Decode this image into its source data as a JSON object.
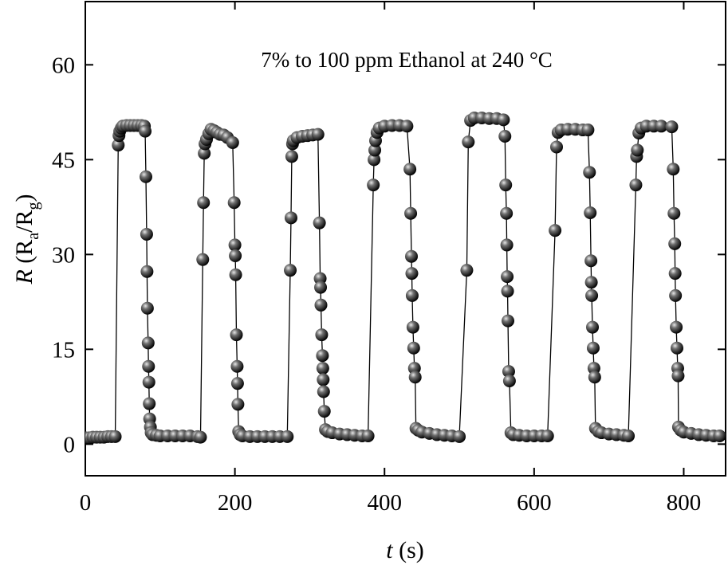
{
  "chart_data": {
    "type": "line",
    "title": "7% to 100 ppm Ethanol at 240 °C",
    "xlabel_parts": [
      "t",
      " (s)"
    ],
    "ylabel_parts": [
      "R",
      " (R",
      "a",
      "/R",
      "g",
      ")"
    ],
    "color": "#000000",
    "markers": true,
    "xlim": [
      0,
      856
    ],
    "xticks": [
      0,
      200,
      400,
      600,
      800
    ],
    "ylim": [
      -5,
      70
    ],
    "yticks": [
      0,
      15,
      30,
      45,
      60
    ],
    "x": [
      0,
      5,
      10,
      15,
      20,
      25,
      30,
      35,
      40,
      44,
      45,
      46,
      48,
      50,
      55,
      60,
      65,
      70,
      75,
      79,
      80,
      81,
      82,
      82.5,
      83,
      84,
      84.5,
      85,
      85.5,
      86,
      87,
      88,
      90,
      95,
      100,
      110,
      120,
      130,
      140,
      150,
      154,
      157,
      158,
      159,
      160,
      162,
      165,
      168,
      172,
      176,
      180,
      185,
      190,
      197,
      199,
      200,
      200.5,
      201,
      202,
      203,
      203.5,
      204,
      205,
      207,
      210,
      220,
      230,
      240,
      250,
      260,
      270,
      274,
      275,
      276,
      277,
      278,
      283,
      290,
      297,
      304,
      311,
      313,
      314,
      314.5,
      315,
      316,
      317,
      317.5,
      318,
      318.5,
      319.5,
      321,
      324,
      330,
      340,
      350,
      360,
      370,
      378,
      385,
      386,
      387,
      388,
      390,
      393,
      400,
      410,
      420,
      430,
      434,
      435,
      436,
      436.5,
      437,
      438,
      439,
      440,
      441,
      442,
      445,
      450,
      460,
      470,
      480,
      490,
      500,
      510,
      512,
      515,
      520,
      530,
      540,
      550,
      559,
      561,
      562,
      563,
      563.5,
      564,
      564.5,
      565,
      566,
      567,
      569,
      572,
      580,
      590,
      600,
      610,
      618,
      628,
      630,
      632,
      636,
      645,
      655,
      665,
      672,
      674,
      675,
      676,
      676.5,
      677,
      678,
      679,
      680,
      681,
      682,
      686,
      690,
      700,
      710,
      720,
      726,
      736,
      737,
      738,
      740,
      743,
      750,
      760,
      770,
      784,
      786,
      787,
      788,
      788.5,
      789,
      790,
      791,
      792,
      792.5,
      793,
      796,
      800,
      810,
      820,
      830,
      840,
      848
    ],
    "values": [
      1.0,
      1.0,
      1.1,
      1.1,
      1.1,
      1.1,
      1.2,
      1.2,
      1.2,
      47.3,
      48.8,
      49.5,
      50,
      50.3,
      50.4,
      50.4,
      50.4,
      50.4,
      50.4,
      50.3,
      49.5,
      42.3,
      33.2,
      27.3,
      21.5,
      16,
      12.3,
      9.8,
      6.4,
      4,
      2.7,
      1.8,
      1.5,
      1.4,
      1.3,
      1.3,
      1.3,
      1.3,
      1.3,
      1.2,
      1.1,
      29.2,
      38.2,
      46,
      47.5,
      48.2,
      49.1,
      49.8,
      49.6,
      49.3,
      49,
      48.9,
      48.5,
      47.7,
      38.2,
      31.5,
      29.8,
      26.8,
      17.3,
      12.3,
      9.6,
      6.3,
      2,
      1.5,
      1.3,
      1.2,
      1.2,
      1.2,
      1.2,
      1.2,
      1.2,
      27.5,
      35.8,
      45.5,
      47.5,
      48,
      48.5,
      48.7,
      48.8,
      48.9,
      49,
      35,
      26.2,
      24.8,
      22,
      17.3,
      14,
      12,
      10.2,
      8.3,
      5.2,
      2.3,
      2,
      1.8,
      1.6,
      1.5,
      1.4,
      1.3,
      1.3,
      41,
      45,
      46.5,
      48,
      49.3,
      50,
      50.3,
      50.4,
      50.4,
      50.3,
      43.5,
      36.5,
      29.7,
      27,
      23.5,
      18.5,
      15.2,
      12,
      10.6,
      2.5,
      2.2,
      1.9,
      1.7,
      1.5,
      1.4,
      1.3,
      1.2,
      27.5,
      47.8,
      51.2,
      51.6,
      51.6,
      51.5,
      51.5,
      51.3,
      48.7,
      41,
      36.5,
      31.5,
      26.5,
      24.2,
      19.5,
      11.5,
      10,
      1.8,
      1.5,
      1.4,
      1.3,
      1.3,
      1.3,
      1.3,
      33.8,
      47,
      49.3,
      49.7,
      49.8,
      49.8,
      49.7,
      49.7,
      43,
      36.6,
      29,
      25.6,
      23.5,
      18.5,
      15.2,
      12,
      10.6,
      2.5,
      2,
      1.8,
      1.6,
      1.5,
      1.4,
      1.3,
      41,
      45.5,
      46.5,
      49.2,
      50,
      50.3,
      50.3,
      50.3,
      50.2,
      43.5,
      36.5,
      31.7,
      27,
      23.5,
      18.5,
      15.2,
      12,
      10.8,
      2.7,
      2.2,
      1.9,
      1.7,
      1.5,
      1.4,
      1.3,
      1.3
    ]
  }
}
